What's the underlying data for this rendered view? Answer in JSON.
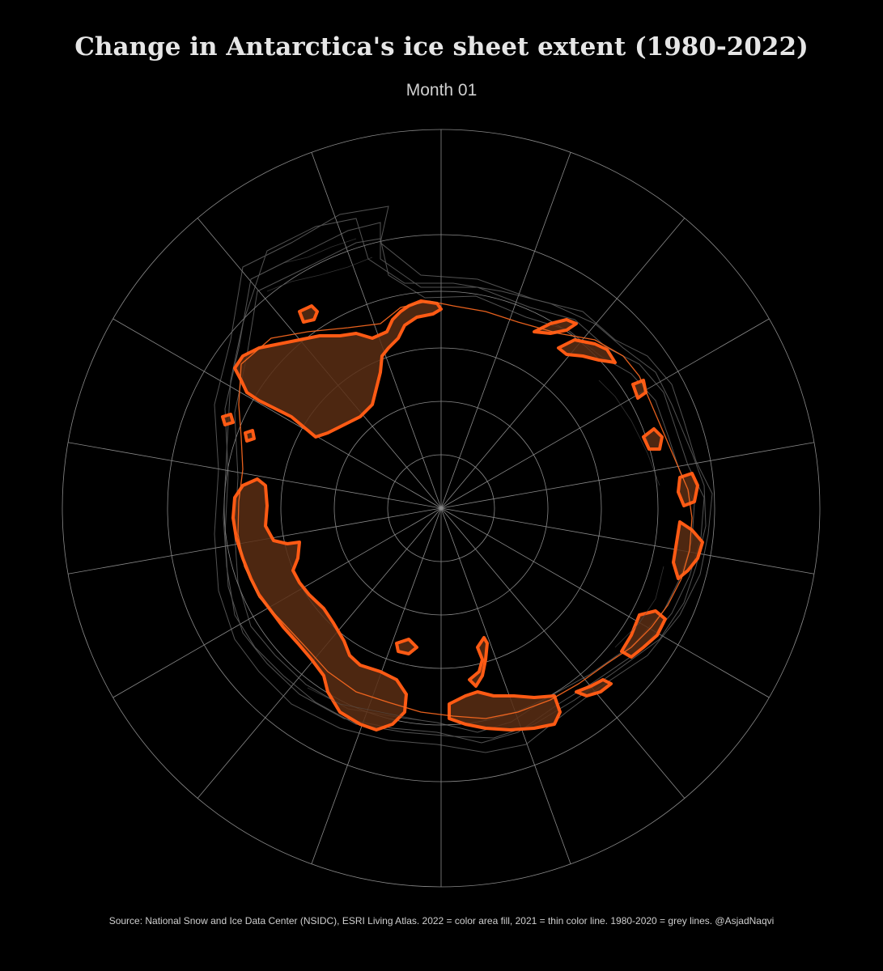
{
  "title": "Change in Antarctica's ice sheet extent (1980-2022)",
  "subtitle": "Month 01",
  "caption": "Source: National Snow and Ice Data Center (NSIDC), ESRI Living Atlas. 2022 = color area fill, 2021 = thin color line. 1980-2020 = grey lines. @AsjadNaqvi",
  "colors": {
    "background": "#000000",
    "graticule": "#8a8a8a",
    "year_2022_fill": "#5a2e14",
    "year_2022_outline": "#ff5a14",
    "year_2021_line": "#ff6a20",
    "years_1980_2020": "#6e6e6e"
  },
  "map": {
    "projection": "south polar stereographic",
    "graticule": "on",
    "meridian_spacing_deg": 20,
    "latitude_circles": 5
  }
}
